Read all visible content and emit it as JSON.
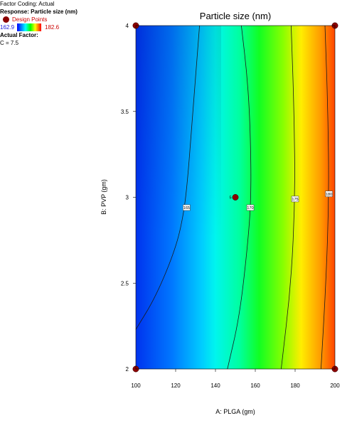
{
  "info": {
    "factor_coding": "Factor Coding: Actual",
    "response": "Response: Particle size (nm)",
    "design_points_label": "Design Points",
    "range_low": "162.9",
    "range_high": "182.6",
    "actual_factor_title": "Actual Factor:",
    "actual_factor_value": "C = 7.5"
  },
  "colors": {
    "low": "#0000ff",
    "high": "#ff0000",
    "design_point": "#8b0000"
  },
  "chart_data": {
    "type": "heatmap",
    "subtype": "contour",
    "title": "Particle size (nm)",
    "xlabel": "A: PLGA (gm)",
    "ylabel": "B: PVP (gm)",
    "xlim": [
      100,
      200
    ],
    "ylim": [
      2,
      4
    ],
    "xticks": [
      100,
      120,
      140,
      160,
      180,
      200
    ],
    "xtick_labels": [
      "100",
      "120",
      "140",
      "160",
      "180",
      "200"
    ],
    "yticks": [
      2,
      2.5,
      3,
      3.5,
      4
    ],
    "ytick_labels": [
      "2",
      "2.5",
      "3",
      "3.5",
      "4"
    ],
    "color_range": [
      162.9,
      182.6
    ],
    "contours": [
      {
        "level": 165,
        "label": "165",
        "points": [
          [
            100,
            2.23
          ],
          [
            110,
            2.42
          ],
          [
            120,
            2.7
          ],
          [
            124,
            2.9
          ],
          [
            126,
            3.1
          ],
          [
            128,
            3.4
          ],
          [
            130,
            3.7
          ],
          [
            132,
            4
          ]
        ],
        "label_at": [
          125.5,
          2.94
        ]
      },
      {
        "level": 170,
        "label": "170",
        "points": [
          [
            146,
            2
          ],
          [
            152,
            2.3
          ],
          [
            156,
            2.7
          ],
          [
            158,
            3.0
          ],
          [
            157.5,
            3.4
          ],
          [
            156,
            3.7
          ],
          [
            153,
            4
          ]
        ],
        "label_at": [
          157.5,
          2.94
        ]
      },
      {
        "level": 175,
        "label": "175",
        "points": [
          [
            173,
            2
          ],
          [
            178,
            2.5
          ],
          [
            180,
            3.0
          ],
          [
            179.5,
            3.5
          ],
          [
            178,
            4
          ]
        ],
        "label_at": [
          180,
          2.99
        ]
      },
      {
        "level": 180,
        "label": "180",
        "points": [
          [
            193,
            2
          ],
          [
            195.5,
            2.5
          ],
          [
            197,
            3.0
          ],
          [
            196.5,
            3.5
          ],
          [
            195,
            4
          ]
        ],
        "label_at": [
          197,
          3.02
        ]
      }
    ],
    "design_points": [
      {
        "x": 100,
        "y": 2
      },
      {
        "x": 100,
        "y": 4
      },
      {
        "x": 200,
        "y": 2
      },
      {
        "x": 200,
        "y": 4
      },
      {
        "x": 150,
        "y": 3,
        "label": "5"
      }
    ]
  }
}
